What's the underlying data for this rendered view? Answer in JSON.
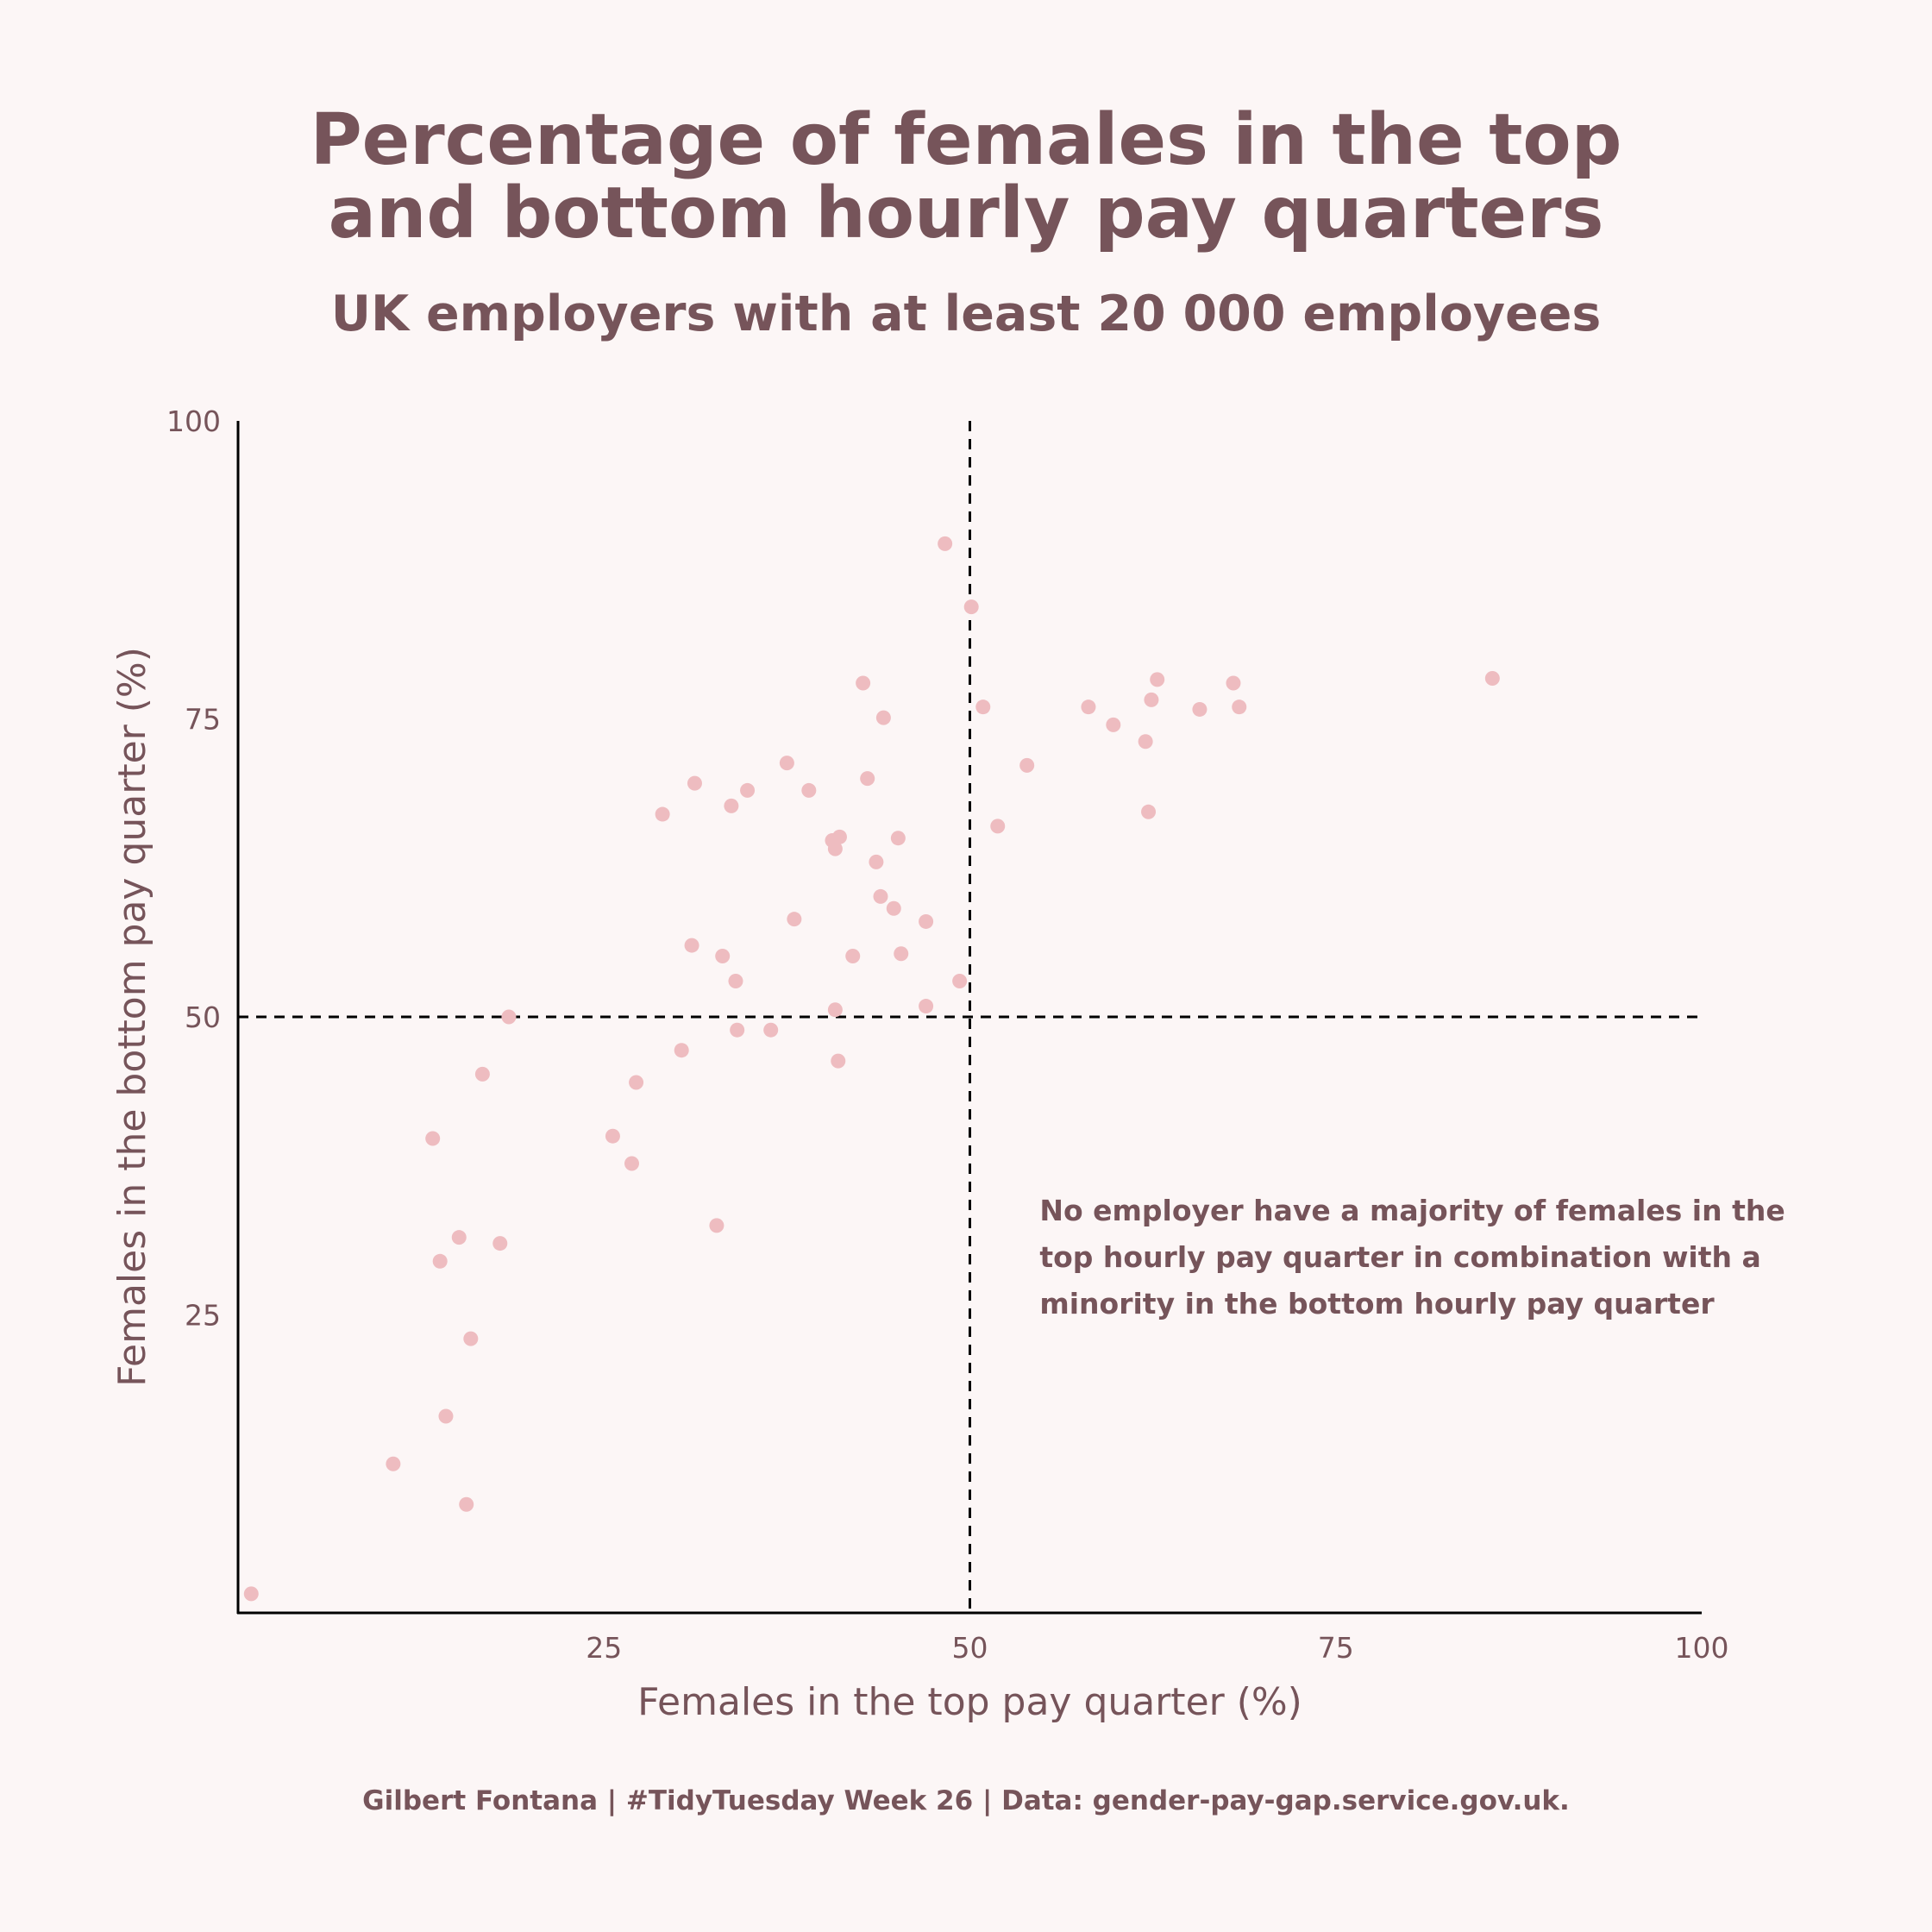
{
  "page": {
    "title_lines": [
      "Percentage of females in the top",
      "and bottom hourly pay quarters"
    ],
    "subtitle": "UK employers with at least 20 000 employees",
    "caption": "Gilbert Fontana | #TidyTuesday Week 26 | Data: gender-pay-gap.service.gov.uk."
  },
  "colors": {
    "background": "#fcf6f6",
    "text": "#76545a",
    "point": "#eebcc0",
    "axis": "#000000"
  },
  "chart_data": {
    "type": "scatter",
    "title": "Percentage of females in the top and bottom hourly pay quarters",
    "subtitle": "UK employers with at least 20 000 employees",
    "xlabel": "Females in the top pay quarter (%)",
    "ylabel": "Females in the bottom pay quarter (%)",
    "xlim": [
      0,
      100
    ],
    "ylim": [
      0,
      100
    ],
    "xticks": [
      25,
      50,
      75,
      100
    ],
    "yticks": [
      25,
      50,
      75,
      100
    ],
    "grid": false,
    "reference_lines": {
      "x": 50,
      "y": 50,
      "style": "dashed"
    },
    "annotation": {
      "lines": [
        "No employer have a majority of females in the",
        "top hourly pay quarter in combination with a",
        "minority in the bottom hourly pay quarter"
      ],
      "anchor_data": [
        55,
        34
      ]
    },
    "points": [
      {
        "x": 0.9,
        "y": 1.6
      },
      {
        "x": 10.6,
        "y": 12.5
      },
      {
        "x": 13.3,
        "y": 39.8
      },
      {
        "x": 13.8,
        "y": 29.5
      },
      {
        "x": 14.2,
        "y": 16.5
      },
      {
        "x": 15.1,
        "y": 31.5
      },
      {
        "x": 15.6,
        "y": 9.1
      },
      {
        "x": 15.9,
        "y": 23.0
      },
      {
        "x": 16.7,
        "y": 45.2
      },
      {
        "x": 17.9,
        "y": 31.0
      },
      {
        "x": 18.5,
        "y": 50.0
      },
      {
        "x": 25.6,
        "y": 40.0
      },
      {
        "x": 26.9,
        "y": 37.7
      },
      {
        "x": 27.2,
        "y": 44.5
      },
      {
        "x": 29.0,
        "y": 67.0
      },
      {
        "x": 30.3,
        "y": 47.2
      },
      {
        "x": 31.0,
        "y": 56.0
      },
      {
        "x": 31.2,
        "y": 69.6
      },
      {
        "x": 32.7,
        "y": 32.5
      },
      {
        "x": 33.1,
        "y": 55.1
      },
      {
        "x": 33.7,
        "y": 67.7
      },
      {
        "x": 34.0,
        "y": 53.0
      },
      {
        "x": 34.1,
        "y": 48.9
      },
      {
        "x": 34.8,
        "y": 69.0
      },
      {
        "x": 36.4,
        "y": 48.9
      },
      {
        "x": 37.5,
        "y": 71.3
      },
      {
        "x": 38.0,
        "y": 58.2
      },
      {
        "x": 39.0,
        "y": 69.0
      },
      {
        "x": 40.6,
        "y": 64.8
      },
      {
        "x": 40.8,
        "y": 64.1
      },
      {
        "x": 40.8,
        "y": 50.6
      },
      {
        "x": 41.0,
        "y": 46.3
      },
      {
        "x": 41.1,
        "y": 65.1
      },
      {
        "x": 42.0,
        "y": 55.1
      },
      {
        "x": 42.7,
        "y": 78.0
      },
      {
        "x": 43.0,
        "y": 70.0
      },
      {
        "x": 43.6,
        "y": 63.0
      },
      {
        "x": 43.9,
        "y": 60.1
      },
      {
        "x": 44.1,
        "y": 75.1
      },
      {
        "x": 44.8,
        "y": 59.1
      },
      {
        "x": 45.1,
        "y": 65.0
      },
      {
        "x": 45.3,
        "y": 55.3
      },
      {
        "x": 47.0,
        "y": 58.0
      },
      {
        "x": 47.0,
        "y": 50.9
      },
      {
        "x": 48.3,
        "y": 89.7
      },
      {
        "x": 49.3,
        "y": 53.0
      },
      {
        "x": 50.1,
        "y": 84.4
      },
      {
        "x": 50.9,
        "y": 76.0
      },
      {
        "x": 51.9,
        "y": 66.0
      },
      {
        "x": 53.9,
        "y": 71.1
      },
      {
        "x": 58.1,
        "y": 76.0
      },
      {
        "x": 59.8,
        "y": 74.5
      },
      {
        "x": 62.0,
        "y": 73.1
      },
      {
        "x": 62.2,
        "y": 67.2
      },
      {
        "x": 62.4,
        "y": 76.6
      },
      {
        "x": 62.8,
        "y": 78.3
      },
      {
        "x": 65.7,
        "y": 75.8
      },
      {
        "x": 68.0,
        "y": 78.0
      },
      {
        "x": 68.4,
        "y": 76.0
      },
      {
        "x": 85.7,
        "y": 78.4
      }
    ]
  }
}
